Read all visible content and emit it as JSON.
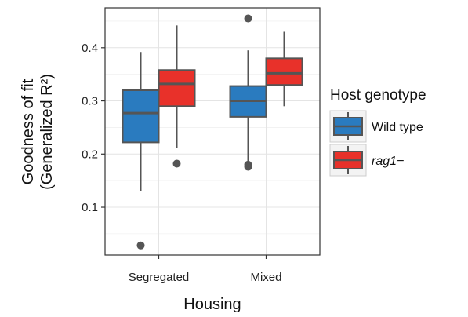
{
  "chart_data": {
    "type": "boxplot",
    "xlabel": "Housing",
    "ylabel": [
      "Goodness of fit",
      "(Generalized R²)"
    ],
    "categories": [
      "Segregated",
      "Mixed"
    ],
    "yticks": [
      0.1,
      0.2,
      0.3,
      0.4
    ],
    "ytick_labels": [
      "0.1",
      "0.2",
      "0.3",
      "0.4"
    ],
    "ylim": [
      0.01,
      0.475
    ],
    "grid": true,
    "legend": {
      "title": "Host genotype",
      "position": "right"
    },
    "series": [
      {
        "name": "Wild type",
        "color": "#2a7bbf",
        "boxes": [
          {
            "category": "Segregated",
            "whisker_low": 0.13,
            "q1": 0.222,
            "median": 0.277,
            "q3": 0.32,
            "whisker_high": 0.392,
            "outliers": [
              0.028
            ]
          },
          {
            "category": "Mixed",
            "whisker_low": 0.18,
            "q1": 0.27,
            "median": 0.3,
            "q3": 0.328,
            "whisker_high": 0.395,
            "outliers": [
              0.455,
              0.18,
              0.176
            ]
          }
        ]
      },
      {
        "name": "rag1−",
        "color": "#e8312a",
        "boxes": [
          {
            "category": "Segregated",
            "whisker_low": 0.212,
            "q1": 0.29,
            "median": 0.332,
            "q3": 0.358,
            "whisker_high": 0.442,
            "outliers": [
              0.182
            ]
          },
          {
            "category": "Mixed",
            "whisker_low": 0.29,
            "q1": 0.33,
            "median": 0.352,
            "q3": 0.38,
            "whisker_high": 0.43,
            "outliers": []
          }
        ]
      }
    ]
  }
}
